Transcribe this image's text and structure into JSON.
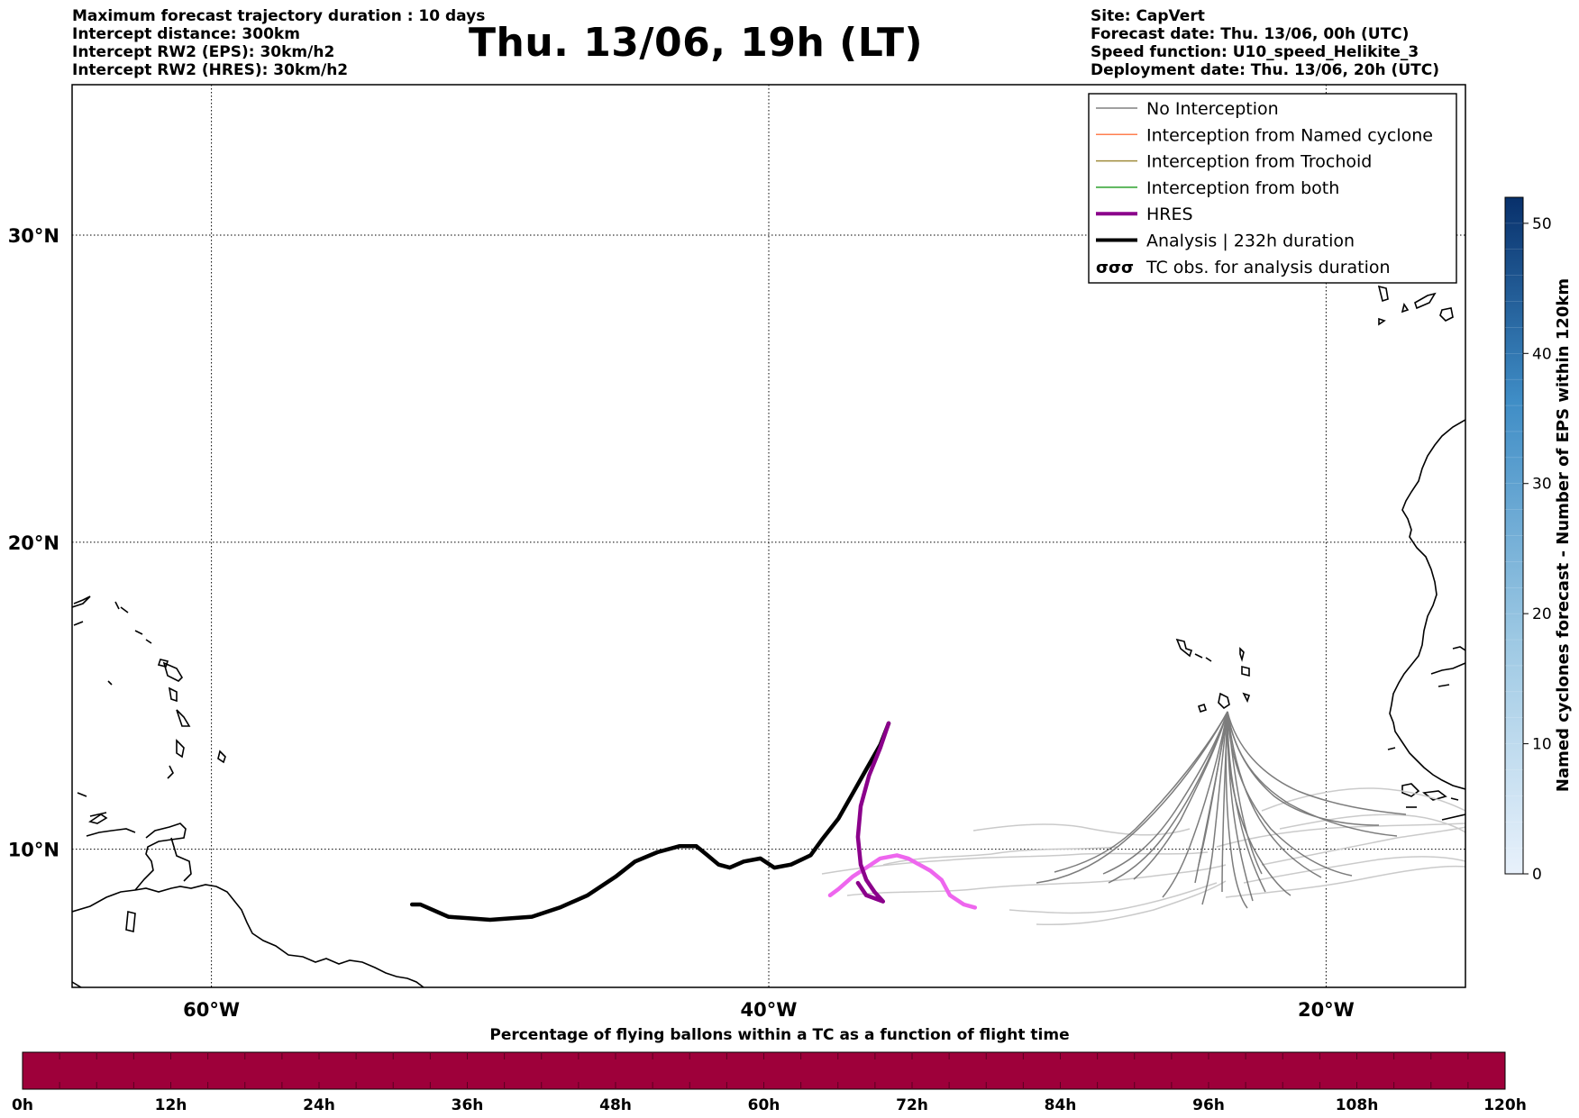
{
  "header_left": [
    "Maximum forecast trajectory duration : 10 days",
    "Intercept distance: 300km",
    "Intercept RW2 (EPS):  30km/h2",
    "Intercept RW2 (HRES): 30km/h2"
  ],
  "title": "Thu. 13/06, 19h (LT)",
  "header_right": [
    "Site: CapVert",
    "Forecast date: Thu. 13/06, 00h (UTC)",
    "Speed function: U10_speed_Helikite_3",
    "Deployment date: Thu. 13/06, 20h (UTC)"
  ],
  "map": {
    "lon_range": [
      -65,
      -15
    ],
    "lat_range": [
      5.5,
      34.9
    ],
    "lon_ticks": [
      {
        "value": -60,
        "label": "60°W"
      },
      {
        "value": -40,
        "label": "40°W"
      },
      {
        "value": -20,
        "label": "20°W"
      }
    ],
    "lat_ticks": [
      {
        "value": 30,
        "label": "30°N"
      },
      {
        "value": 20,
        "label": "20°N"
      },
      {
        "value": 10,
        "label": "10°N"
      }
    ]
  },
  "legend": [
    {
      "label": "No Interception",
      "color": "#808080",
      "style": "thin"
    },
    {
      "label": "Interception from Named cyclone",
      "color": "#ff7f50",
      "style": "thin"
    },
    {
      "label": "Interception from Trochoid",
      "color": "#a08c3c",
      "style": "thin"
    },
    {
      "label": "Interception from both",
      "color": "#2ca02c",
      "style": "thin"
    },
    {
      "label": "HRES",
      "color": "#8b008b",
      "style": "thick"
    },
    {
      "label": "Analysis | 232h duration",
      "color": "#000000",
      "style": "thick"
    },
    {
      "label": "TC obs. for analysis duration",
      "color": "#000000",
      "style": "symbol"
    }
  ],
  "colorbar_right": {
    "label": "Named cyclones forecast - Number of EPS within 120km",
    "min": 0,
    "max": 52,
    "ticks": [
      0,
      10,
      20,
      30,
      40,
      50
    ],
    "color_low": "#e3eef9",
    "color_high": "#08306b"
  },
  "colorbar_bottom": {
    "title": "Percentage of flying ballons within a TC as a function of flight time",
    "ticks": [
      "0h",
      "12h",
      "24h",
      "36h",
      "48h",
      "60h",
      "72h",
      "84h",
      "96h",
      "108h",
      "120h"
    ],
    "color": "#9e003a"
  },
  "tracks": {
    "analysis": [
      [
        -52.8,
        8.2
      ],
      [
        -52.5,
        8.2
      ],
      [
        -51.5,
        7.8
      ],
      [
        -50,
        7.7
      ],
      [
        -48.5,
        7.8
      ],
      [
        -47.5,
        8.1
      ],
      [
        -46.5,
        8.5
      ],
      [
        -45.5,
        9.1
      ],
      [
        -44.8,
        9.6
      ],
      [
        -44,
        9.9
      ],
      [
        -43.2,
        10.1
      ],
      [
        -42.6,
        10.1
      ],
      [
        -42.2,
        9.8
      ],
      [
        -41.8,
        9.5
      ],
      [
        -41.4,
        9.4
      ],
      [
        -40.9,
        9.6
      ],
      [
        -40.3,
        9.7
      ],
      [
        -39.8,
        9.4
      ],
      [
        -39.2,
        9.5
      ],
      [
        -38.5,
        9.8
      ],
      [
        -38.1,
        10.3
      ],
      [
        -37.5,
        11
      ],
      [
        -37,
        11.8
      ],
      [
        -36.5,
        12.6
      ],
      [
        -36,
        13.4
      ],
      [
        -35.7,
        14.1
      ]
    ],
    "hres": [
      [
        -35.7,
        14.1
      ],
      [
        -36,
        13.3
      ],
      [
        -36.4,
        12.4
      ],
      [
        -36.7,
        11.4
      ],
      [
        -36.8,
        10.4
      ],
      [
        -36.7,
        9.5
      ],
      [
        -36.5,
        9
      ],
      [
        -36.2,
        8.6
      ],
      [
        -35.9,
        8.3
      ],
      [
        -36.5,
        8.5
      ],
      [
        -36.8,
        8.9
      ]
    ],
    "hres_tail": [
      [
        -37.8,
        8.5
      ],
      [
        -37.5,
        8.7
      ],
      [
        -37,
        9.1
      ],
      [
        -36.5,
        9.4
      ],
      [
        -36,
        9.7
      ],
      [
        -35.4,
        9.8
      ],
      [
        -35,
        9.7
      ],
      [
        -34.6,
        9.5
      ],
      [
        -34.2,
        9.3
      ],
      [
        -33.8,
        9
      ],
      [
        -33.5,
        8.5
      ],
      [
        -33,
        8.2
      ],
      [
        -32.6,
        8.1
      ]
    ]
  }
}
